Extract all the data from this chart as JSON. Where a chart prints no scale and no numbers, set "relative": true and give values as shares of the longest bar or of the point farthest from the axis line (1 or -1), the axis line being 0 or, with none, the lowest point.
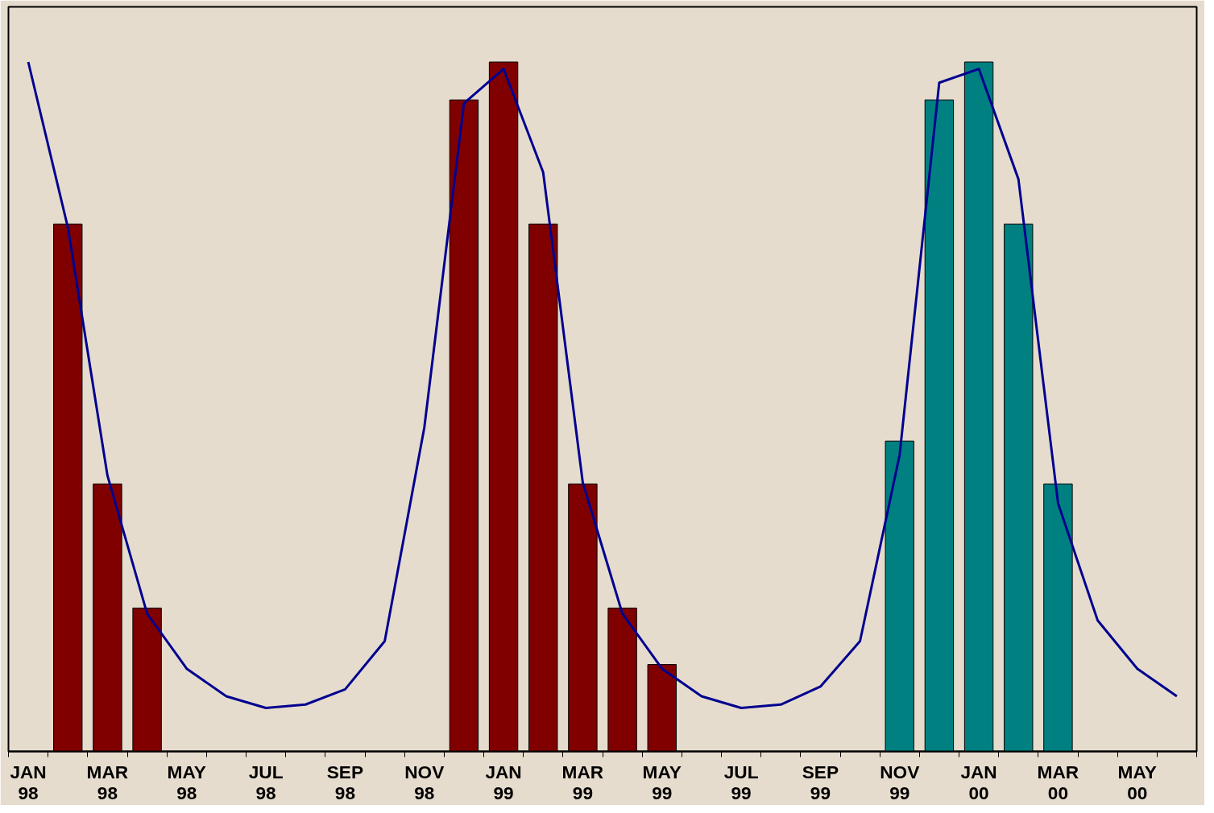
{
  "chart_data": {
    "type": "bar",
    "relative": true,
    "grid": false,
    "categories": [
      "JAN\n98",
      null,
      "MAR\n98",
      null,
      "MAY\n98",
      null,
      "JUL\n98",
      null,
      "SEP\n98",
      null,
      "NOV\n98",
      null,
      "JAN\n99",
      null,
      "MAR\n99",
      null,
      "MAY\n99",
      null,
      "JUL\n99",
      null,
      "SEP\n99",
      null,
      "NOV\n99",
      null,
      "JAN\n00",
      null,
      "MAR\n00",
      null,
      "MAY\n00",
      null
    ],
    "series": [
      {
        "color": "#800000",
        "values": [
          null,
          0.765,
          0.388,
          0.208,
          null,
          null,
          null,
          null,
          null,
          null,
          null,
          0.945,
          1.0,
          0.765,
          0.388,
          0.208,
          0.126,
          null,
          null,
          null,
          null,
          null,
          null,
          null,
          null,
          null,
          null,
          null,
          null,
          null
        ]
      },
      {
        "color": "#008080",
        "values": [
          null,
          null,
          null,
          null,
          null,
          null,
          null,
          null,
          null,
          null,
          null,
          null,
          null,
          null,
          null,
          null,
          null,
          null,
          null,
          null,
          null,
          null,
          0.45,
          0.945,
          1.0,
          0.765,
          0.388,
          null,
          null,
          null
        ]
      },
      {
        "type": "line",
        "color": "#000090",
        "values": [
          1.0,
          0.76,
          0.4,
          0.2,
          0.12,
          0.08,
          0.063,
          0.068,
          0.09,
          0.16,
          0.47,
          0.94,
          0.99,
          0.84,
          0.39,
          0.2,
          0.12,
          0.08,
          0.063,
          0.068,
          0.094,
          0.16,
          0.43,
          0.97,
          0.99,
          0.83,
          0.36,
          0.19,
          0.12,
          0.08
        ]
      }
    ]
  }
}
